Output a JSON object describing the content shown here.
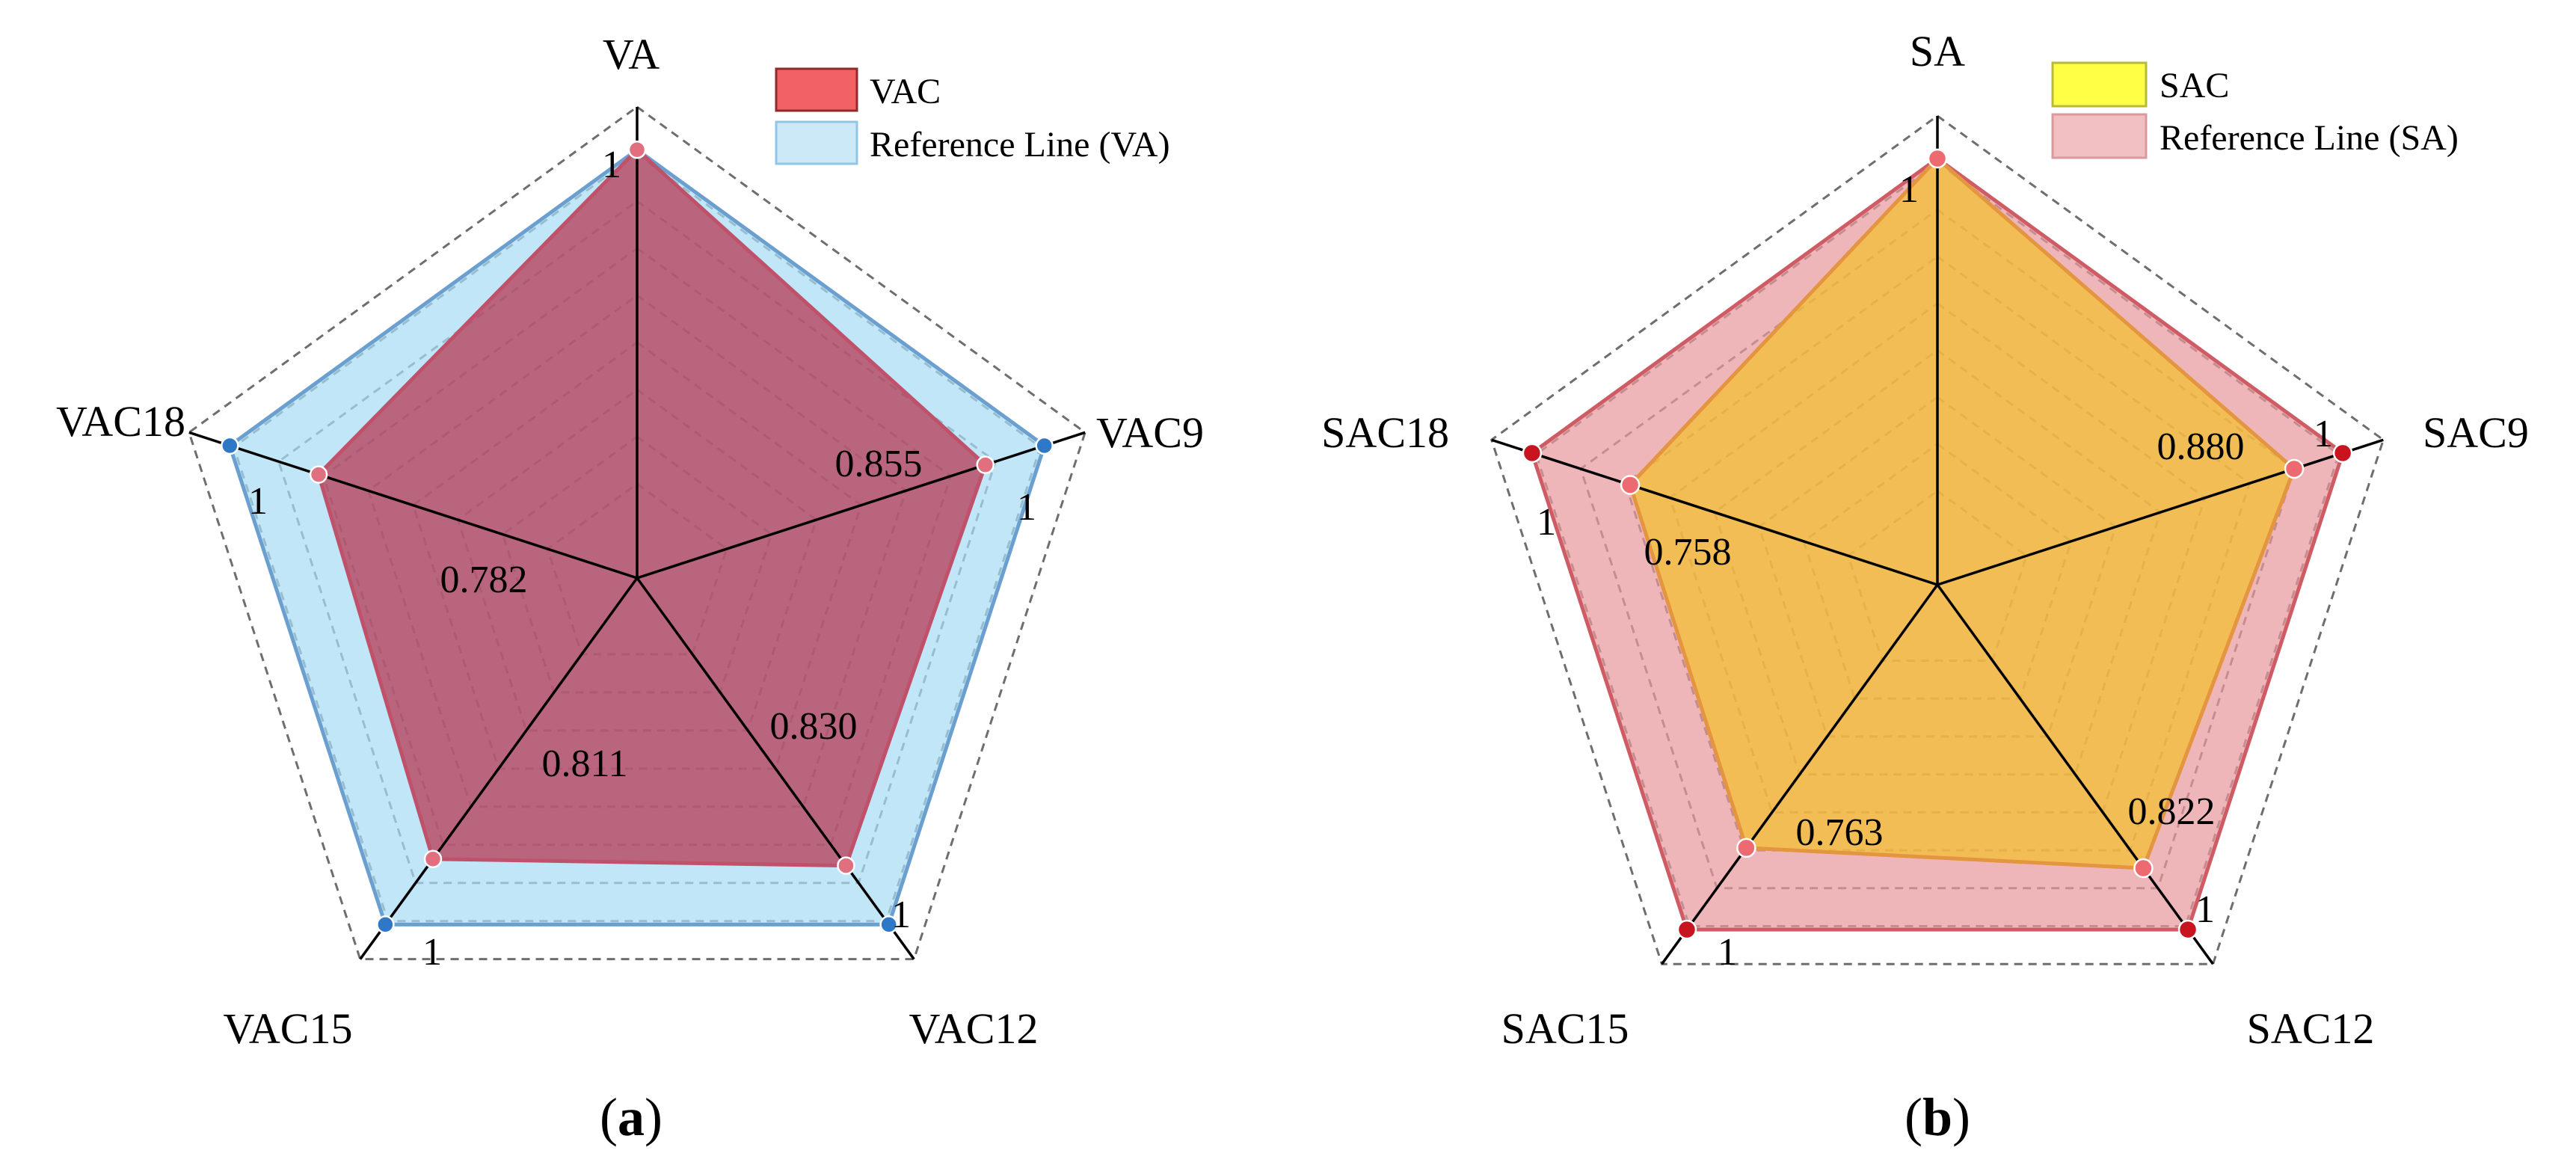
{
  "chart_data": [
    {
      "type": "radar",
      "panel_label": "(a)",
      "panel_letter": "a",
      "axes": [
        "VA",
        "VAC9",
        "VAC12",
        "VAC15",
        "VAC18"
      ],
      "range": [
        0,
        1.1
      ],
      "grid_levels": [
        0.22,
        0.33,
        0.44,
        0.55,
        0.66,
        0.77,
        0.88,
        0.99,
        1.1
      ],
      "series": [
        {
          "name": "VAC",
          "values": [
            1,
            0.855,
            0.83,
            0.811,
            0.782
          ],
          "fill": "#b5334d",
          "stroke": "#c0516a",
          "marker": "#e0707f"
        },
        {
          "name": "Reference Line (VA)",
          "values": [
            1,
            1,
            1,
            1,
            1
          ],
          "fill": "#a8dcf5",
          "stroke": "#6b9fd0",
          "marker": "#2f78c8"
        }
      ],
      "legend": [
        {
          "label": "VAC",
          "color": "#f26163",
          "border": "#8e2a2b"
        },
        {
          "label": "Reference Line (VA)",
          "color": "#cce9f8",
          "border": "#8fc6e6"
        }
      ],
      "value_labels": [
        "1",
        "0.855",
        "0.830",
        "0.811",
        "0.782"
      ],
      "reference_labels": [
        "1",
        "1",
        "1",
        "1",
        "1"
      ]
    },
    {
      "type": "radar",
      "panel_label": "(b)",
      "panel_letter": "b",
      "axes": [
        "SA",
        "SAC9",
        "SAC12",
        "SAC15",
        "SAC18"
      ],
      "range": [
        0,
        1.1
      ],
      "grid_levels": [
        0.22,
        0.33,
        0.44,
        0.55,
        0.66,
        0.77,
        0.88,
        0.99,
        1.1
      ],
      "series": [
        {
          "name": "Reference Line (SA)",
          "values": [
            1,
            1,
            1,
            1,
            1
          ],
          "fill": "#e99aa0",
          "stroke": "#cf5b65",
          "marker": "#c8141f"
        },
        {
          "name": "SAC",
          "values": [
            1,
            0.88,
            0.822,
            0.763,
            0.758
          ],
          "fill": "#f2bf2c",
          "stroke": "#e39540",
          "marker": "#ec6a70"
        }
      ],
      "legend": [
        {
          "label": "SAC",
          "color": "#ffff45",
          "border": "#b8b83a"
        },
        {
          "label": "Reference Line (SA)",
          "color": "#f2c0c2",
          "border": "#d99a9e"
        }
      ],
      "value_labels": [
        "1",
        "0.880",
        "0.822",
        "0.763",
        "0.758"
      ],
      "reference_labels": [
        "1",
        "1",
        "1",
        "1",
        "1"
      ]
    }
  ]
}
